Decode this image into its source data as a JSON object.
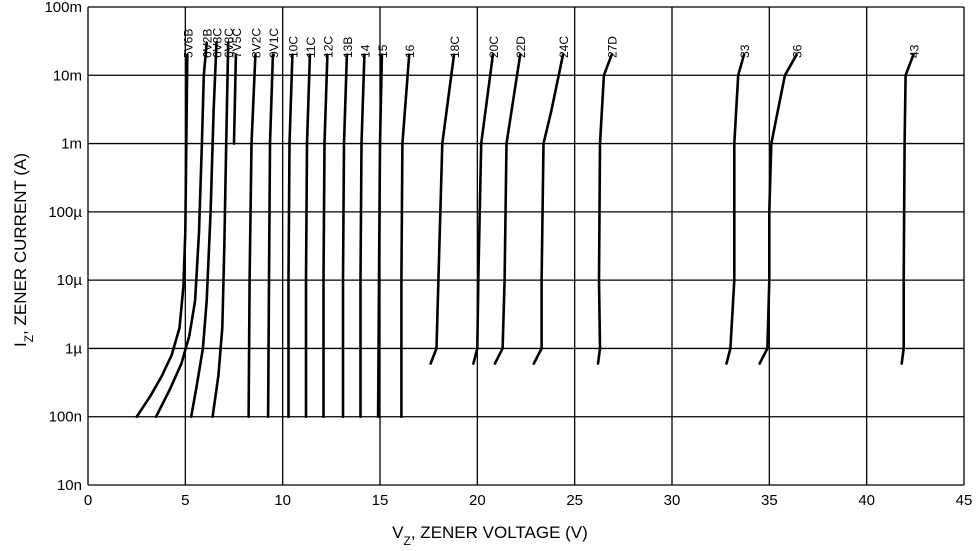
{
  "chart_data": {
    "type": "line",
    "xlabel": {
      "main": "V",
      "sub": "Z",
      "rest": ", ZENER VOLTAGE (V)"
    },
    "ylabel": {
      "main": "I",
      "sub": "Z",
      "rest": ", ZENER CURRENT (A)"
    },
    "x_scale": "linear",
    "y_scale": "log",
    "xlim": [
      0,
      45
    ],
    "ylim": [
      1e-08,
      0.1
    ],
    "grid": true,
    "legend": "none",
    "x_ticks": [
      {
        "value": 0,
        "label": "0"
      },
      {
        "value": 5,
        "label": "5"
      },
      {
        "value": 10,
        "label": "10"
      },
      {
        "value": 15,
        "label": "15"
      },
      {
        "value": 20,
        "label": "20"
      },
      {
        "value": 25,
        "label": "25"
      },
      {
        "value": 30,
        "label": "30"
      },
      {
        "value": 35,
        "label": "35"
      },
      {
        "value": 40,
        "label": "40"
      },
      {
        "value": 45,
        "label": "45"
      }
    ],
    "y_ticks": [
      {
        "value": 0.1,
        "label": "100m"
      },
      {
        "value": 0.01,
        "label": "10m"
      },
      {
        "value": 0.001,
        "label": "1m"
      },
      {
        "value": 0.0001,
        "label": "100µ"
      },
      {
        "value": 1e-05,
        "label": "10µ"
      },
      {
        "value": 1e-06,
        "label": "1µ"
      },
      {
        "value": 1e-07,
        "label": "100n"
      },
      {
        "value": 1e-08,
        "label": "10n"
      }
    ],
    "series": [
      {
        "name": "5V6B",
        "points": [
          [
            2.5,
            1e-07
          ],
          [
            3.2,
            2e-07
          ],
          [
            3.8,
            4e-07
          ],
          [
            4.3,
            8e-07
          ],
          [
            4.7,
            2e-06
          ],
          [
            4.9,
            8e-06
          ],
          [
            5.0,
            5e-05
          ],
          [
            5.05,
            0.001
          ],
          [
            5.1,
            0.02
          ]
        ]
      },
      {
        "name": "6V2B",
        "points": [
          [
            3.5,
            1e-07
          ],
          [
            4.2,
            2.5e-07
          ],
          [
            4.8,
            6e-07
          ],
          [
            5.2,
            1.5e-06
          ],
          [
            5.5,
            5e-06
          ],
          [
            5.7,
            5e-05
          ],
          [
            5.85,
            0.001
          ],
          [
            5.95,
            0.01
          ],
          [
            6.1,
            0.03
          ]
        ]
      },
      {
        "name": "6V8C",
        "points": [
          [
            5.3,
            1e-07
          ],
          [
            5.6,
            3e-07
          ],
          [
            5.9,
            1e-06
          ],
          [
            6.1,
            5e-06
          ],
          [
            6.3,
            0.0001
          ],
          [
            6.45,
            0.003
          ],
          [
            6.6,
            0.03
          ]
        ]
      },
      {
        "name": "6V8C",
        "points": [
          [
            6.4,
            1e-07
          ],
          [
            6.7,
            4e-07
          ],
          [
            6.9,
            2e-06
          ],
          [
            7.0,
            3e-05
          ],
          [
            7.1,
            0.001
          ],
          [
            7.2,
            0.03
          ]
        ]
      },
      {
        "name": "7V5C",
        "points": [
          [
            7.5,
            0.001
          ],
          [
            7.6,
            0.02
          ]
        ]
      },
      {
        "name": "8V2C",
        "points": [
          [
            8.25,
            1e-07
          ],
          [
            8.3,
            1e-05
          ],
          [
            8.4,
            0.001
          ],
          [
            8.6,
            0.02
          ]
        ]
      },
      {
        "name": "9V1C",
        "points": [
          [
            9.25,
            1e-07
          ],
          [
            9.3,
            1e-05
          ],
          [
            9.35,
            0.001
          ],
          [
            9.5,
            0.02
          ]
        ]
      },
      {
        "name": "10C",
        "points": [
          [
            10.3,
            1e-07
          ],
          [
            10.3,
            1e-05
          ],
          [
            10.35,
            0.001
          ],
          [
            10.5,
            0.02
          ]
        ]
      },
      {
        "name": "11C",
        "points": [
          [
            11.2,
            1e-07
          ],
          [
            11.2,
            1e-05
          ],
          [
            11.25,
            0.001
          ],
          [
            11.4,
            0.02
          ]
        ]
      },
      {
        "name": "12C",
        "points": [
          [
            12.1,
            1e-07
          ],
          [
            12.1,
            1e-05
          ],
          [
            12.15,
            0.001
          ],
          [
            12.3,
            0.02
          ]
        ]
      },
      {
        "name": "13B",
        "points": [
          [
            13.1,
            1e-07
          ],
          [
            13.1,
            1e-05
          ],
          [
            13.15,
            0.001
          ],
          [
            13.3,
            0.02
          ]
        ]
      },
      {
        "name": "14",
        "points": [
          [
            14.0,
            1e-07
          ],
          [
            14.0,
            1e-05
          ],
          [
            14.05,
            0.001
          ],
          [
            14.2,
            0.02
          ]
        ]
      },
      {
        "name": "15",
        "points": [
          [
            14.9,
            1e-07
          ],
          [
            14.95,
            1e-05
          ],
          [
            15.0,
            0.001
          ],
          [
            15.1,
            0.02
          ]
        ]
      },
      {
        "name": "16",
        "points": [
          [
            16.1,
            1e-07
          ],
          [
            16.1,
            1e-05
          ],
          [
            16.15,
            0.001
          ],
          [
            16.5,
            0.02
          ]
        ]
      },
      {
        "name": "18C",
        "points": [
          [
            17.6,
            6e-07
          ],
          [
            17.9,
            1e-06
          ],
          [
            18.0,
            1e-05
          ],
          [
            18.2,
            0.001
          ],
          [
            18.8,
            0.02
          ]
        ]
      },
      {
        "name": "20C",
        "points": [
          [
            19.8,
            6e-07
          ],
          [
            20.0,
            1e-06
          ],
          [
            20.05,
            1e-05
          ],
          [
            20.2,
            0.001
          ],
          [
            20.8,
            0.02
          ]
        ]
      },
      {
        "name": "22D",
        "points": [
          [
            20.9,
            6e-07
          ],
          [
            21.3,
            1e-06
          ],
          [
            21.4,
            1e-05
          ],
          [
            21.5,
            0.001
          ],
          [
            22.2,
            0.02
          ]
        ]
      },
      {
        "name": "24C",
        "points": [
          [
            22.9,
            6e-07
          ],
          [
            23.3,
            1e-06
          ],
          [
            23.3,
            1e-05
          ],
          [
            23.4,
            0.001
          ],
          [
            23.8,
            0.003
          ],
          [
            24.4,
            0.02
          ]
        ]
      },
      {
        "name": "27D",
        "points": [
          [
            26.2,
            6e-07
          ],
          [
            26.3,
            1e-06
          ],
          [
            26.25,
            1e-05
          ],
          [
            26.3,
            0.001
          ],
          [
            26.5,
            0.01
          ],
          [
            26.9,
            0.02
          ]
        ]
      },
      {
        "name": "33",
        "points": [
          [
            32.8,
            6e-07
          ],
          [
            33.0,
            1e-06
          ],
          [
            33.2,
            1e-05
          ],
          [
            33.2,
            0.001
          ],
          [
            33.4,
            0.01
          ],
          [
            33.7,
            0.02
          ]
        ]
      },
      {
        "name": "36",
        "points": [
          [
            34.5,
            6e-07
          ],
          [
            34.9,
            1e-06
          ],
          [
            35.0,
            1e-05
          ],
          [
            35.0,
            0.0001
          ],
          [
            35.1,
            0.001
          ],
          [
            35.8,
            0.01
          ],
          [
            36.4,
            0.02
          ]
        ]
      },
      {
        "name": "43",
        "points": [
          [
            41.8,
            6e-07
          ],
          [
            41.9,
            1e-06
          ],
          [
            41.9,
            1e-05
          ],
          [
            41.95,
            0.001
          ],
          [
            42.0,
            0.01
          ],
          [
            42.4,
            0.02
          ]
        ]
      }
    ]
  }
}
